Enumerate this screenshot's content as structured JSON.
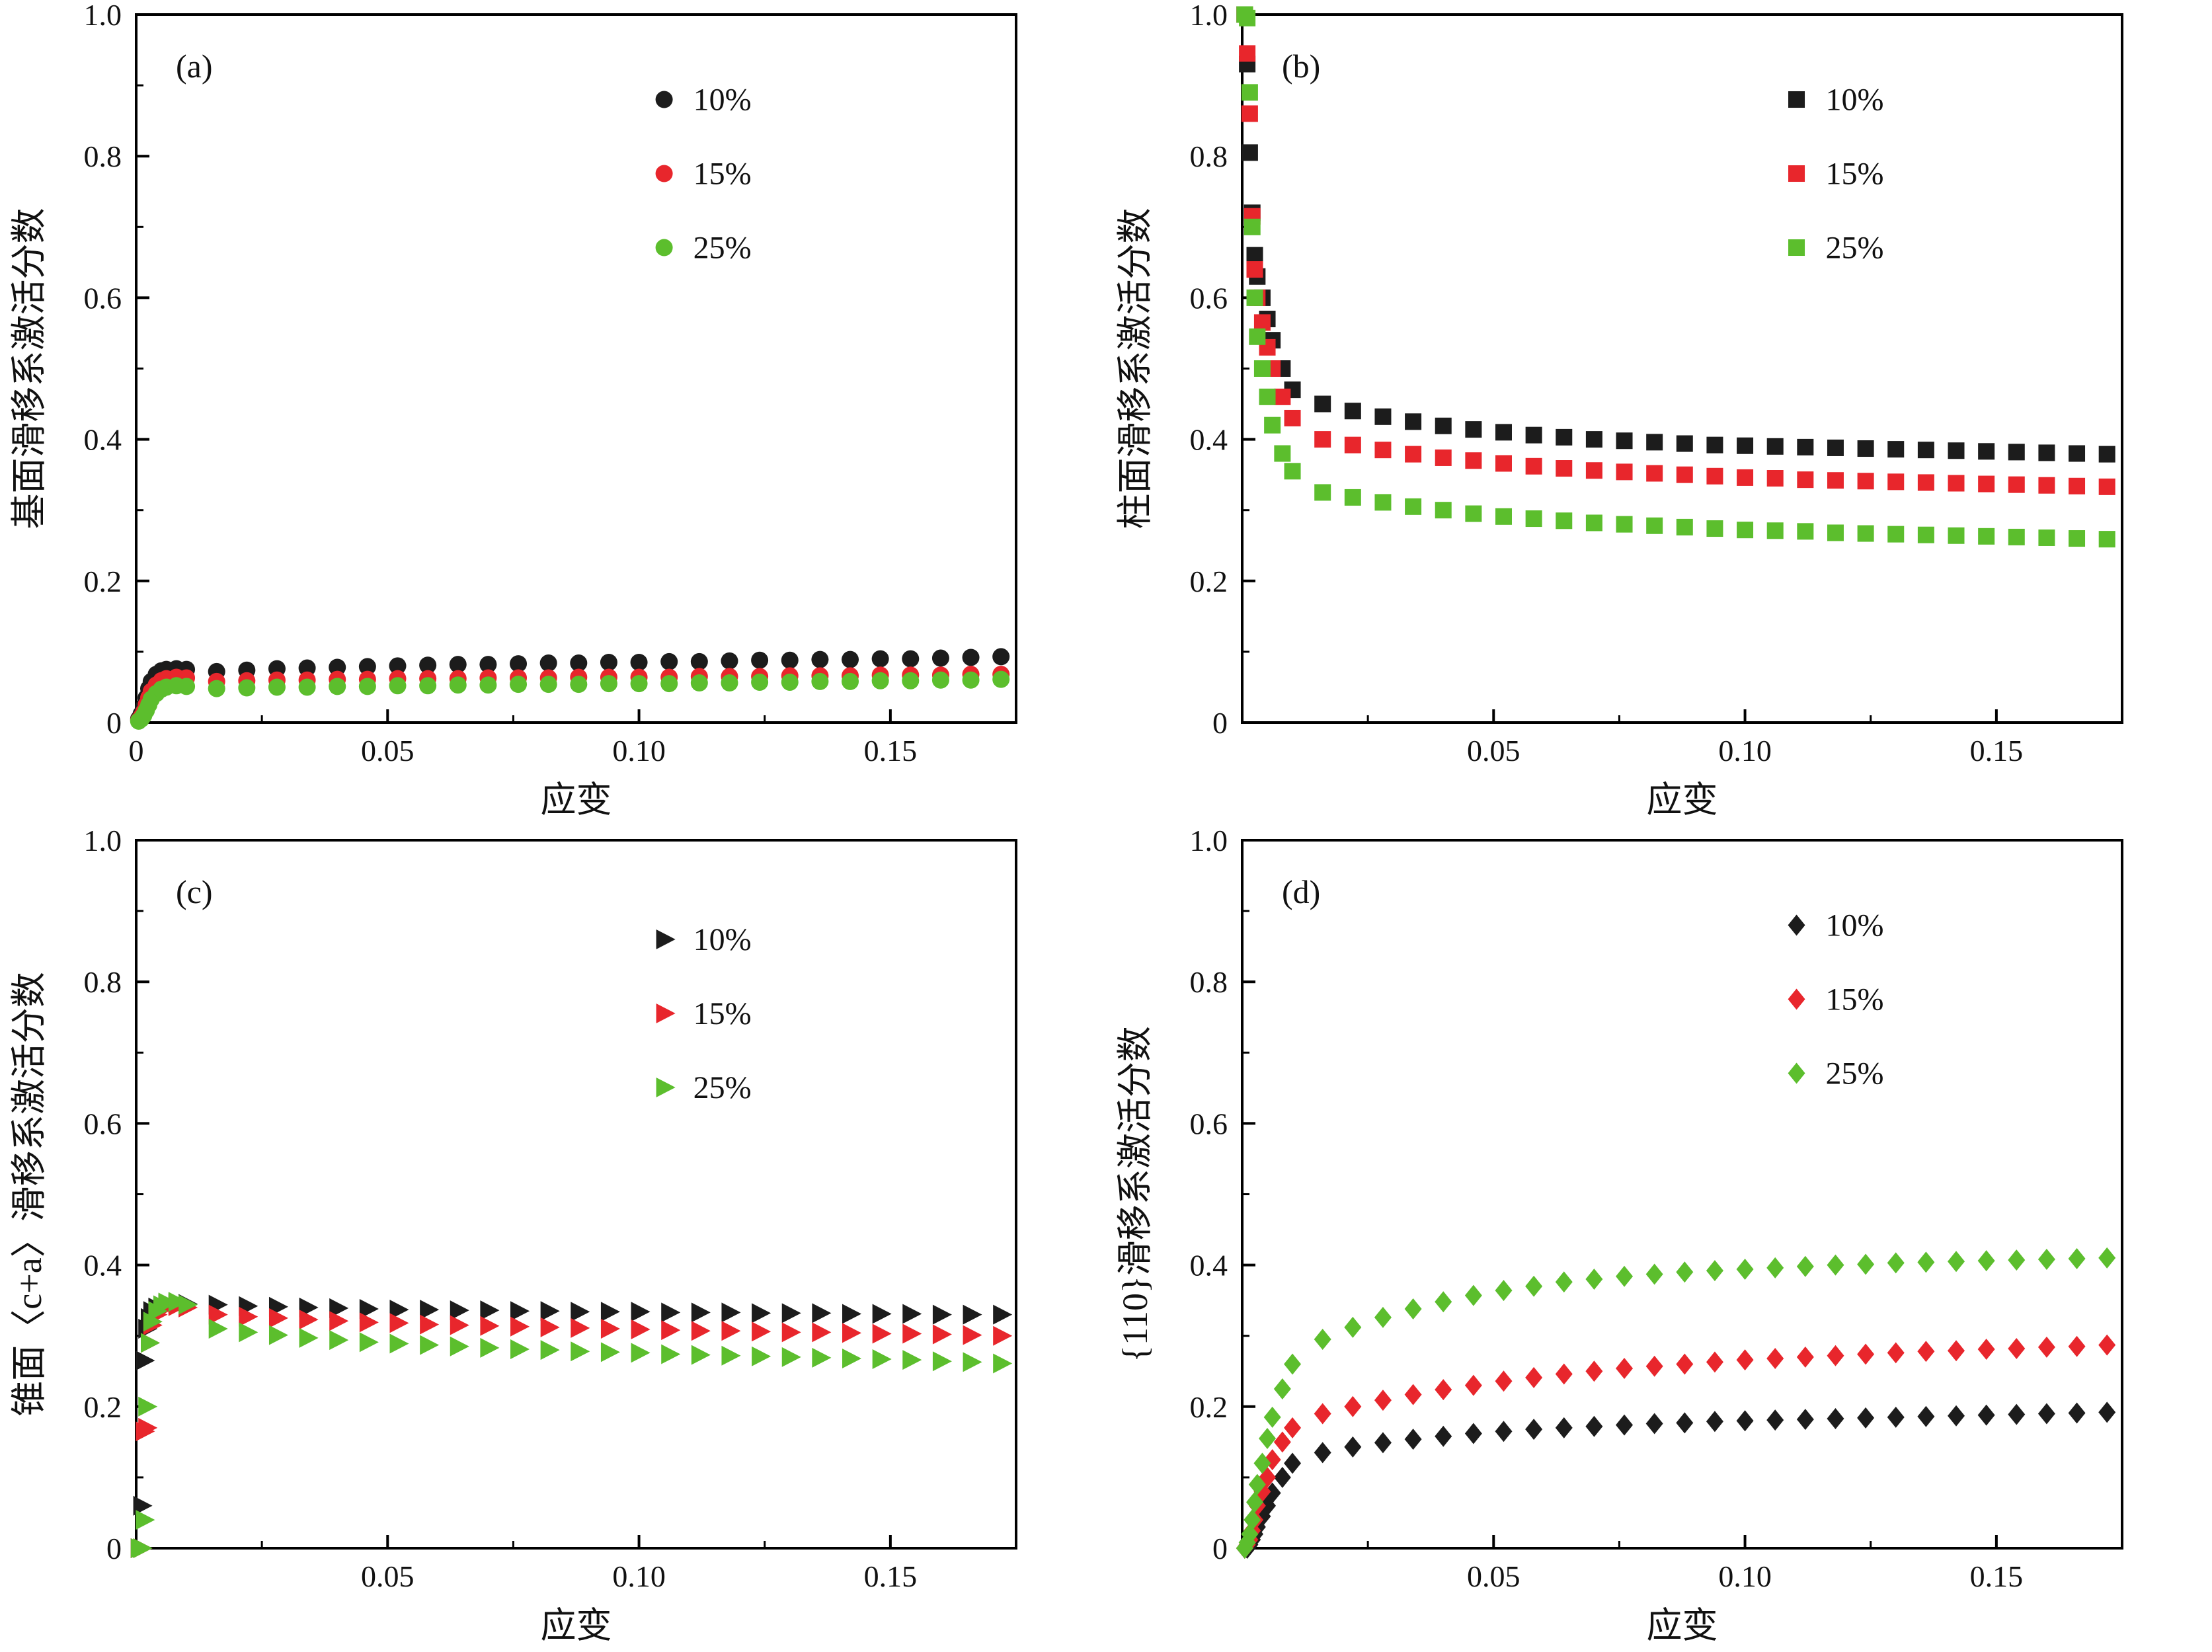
{
  "style": {
    "background": "#ffffff",
    "axis_color": "#000000",
    "text_color": "#111111",
    "series_colors": {
      "black": "#1c1c1c",
      "red": "#e8262c",
      "green": "#5cbe2d"
    }
  },
  "chart_data": [
    {
      "id": "a",
      "type": "scatter",
      "panel_label": "(a)",
      "marker": "circle",
      "xlabel": "应变",
      "ylabel": "基面滑移系激活分数",
      "xlim": [
        0,
        0.175
      ],
      "ylim": [
        0,
        1.0
      ],
      "grid": false,
      "x_ticks": {
        "values": [
          0,
          0.05,
          0.1,
          0.15
        ],
        "labels": [
          "0",
          "0.05",
          "0.10",
          "0.15"
        ]
      },
      "y_ticks": {
        "values": [
          0,
          0.2,
          0.4,
          0.6,
          0.8,
          1.0
        ],
        "labels": [
          "0",
          "0.2",
          "0.4",
          "0.6",
          "0.8",
          "1.0"
        ]
      },
      "x_minor": [
        0.025,
        0.075,
        0.125
      ],
      "y_minor": [
        0.1,
        0.3,
        0.5,
        0.7,
        0.9
      ],
      "legend": {
        "x": 0.6,
        "y": 0.12,
        "position": "upper-center-right"
      },
      "x": [
        0.0005,
        0.001,
        0.0015,
        0.002,
        0.0025,
        0.003,
        0.004,
        0.005,
        0.006,
        0.008,
        0.01,
        0.016,
        0.022,
        0.028,
        0.034,
        0.04,
        0.046,
        0.052,
        0.058,
        0.064,
        0.07,
        0.076,
        0.082,
        0.088,
        0.094,
        0.1,
        0.106,
        0.112,
        0.118,
        0.124,
        0.13,
        0.136,
        0.142,
        0.148,
        0.154,
        0.16,
        0.166,
        0.172
      ],
      "series": [
        {
          "name": "10%",
          "color": "#1c1c1c",
          "values": [
            0.005,
            0.012,
            0.022,
            0.035,
            0.048,
            0.058,
            0.068,
            0.073,
            0.075,
            0.076,
            0.075,
            0.072,
            0.074,
            0.076,
            0.077,
            0.078,
            0.079,
            0.08,
            0.081,
            0.082,
            0.082,
            0.083,
            0.084,
            0.084,
            0.085,
            0.085,
            0.086,
            0.086,
            0.087,
            0.088,
            0.088,
            0.089,
            0.089,
            0.09,
            0.09,
            0.091,
            0.092,
            0.093
          ]
        },
        {
          "name": "15%",
          "color": "#e8262c",
          "values": [
            0.003,
            0.008,
            0.015,
            0.025,
            0.035,
            0.044,
            0.053,
            0.059,
            0.062,
            0.064,
            0.063,
            0.058,
            0.059,
            0.06,
            0.06,
            0.061,
            0.061,
            0.062,
            0.062,
            0.062,
            0.063,
            0.063,
            0.063,
            0.064,
            0.064,
            0.064,
            0.064,
            0.065,
            0.065,
            0.065,
            0.066,
            0.066,
            0.066,
            0.067,
            0.067,
            0.067,
            0.068,
            0.068
          ]
        },
        {
          "name": "25%",
          "color": "#5cbe2d",
          "values": [
            0.002,
            0.005,
            0.01,
            0.017,
            0.025,
            0.033,
            0.041,
            0.047,
            0.05,
            0.052,
            0.051,
            0.048,
            0.049,
            0.05,
            0.05,
            0.051,
            0.051,
            0.052,
            0.052,
            0.053,
            0.053,
            0.054,
            0.054,
            0.054,
            0.055,
            0.055,
            0.055,
            0.056,
            0.056,
            0.057,
            0.057,
            0.058,
            0.058,
            0.059,
            0.059,
            0.06,
            0.06,
            0.061
          ]
        }
      ]
    },
    {
      "id": "b",
      "type": "scatter",
      "panel_label": "(b)",
      "marker": "square",
      "xlabel": "应变",
      "ylabel": "柱面滑移系激活分数",
      "xlim": [
        0,
        0.175
      ],
      "ylim": [
        0,
        1.0
      ],
      "grid": false,
      "x_ticks": {
        "values": [
          0.05,
          0.1,
          0.15
        ],
        "labels": [
          "0.05",
          "0.10",
          "0.15"
        ]
      },
      "y_ticks": {
        "values": [
          0,
          0.2,
          0.4,
          0.6,
          0.8,
          1.0
        ],
        "labels": [
          "0",
          "0.2",
          "0.4",
          "0.6",
          "0.8",
          "1.0"
        ]
      },
      "x_minor": [
        0.025,
        0.075,
        0.125
      ],
      "y_minor": [
        0.1,
        0.3,
        0.5,
        0.7,
        0.9
      ],
      "legend": {
        "x": 0.63,
        "y": 0.12,
        "position": "upper-right"
      },
      "x": [
        0.0005,
        0.001,
        0.0015,
        0.002,
        0.0025,
        0.003,
        0.004,
        0.005,
        0.006,
        0.008,
        0.01,
        0.016,
        0.022,
        0.028,
        0.034,
        0.04,
        0.046,
        0.052,
        0.058,
        0.064,
        0.07,
        0.076,
        0.082,
        0.088,
        0.094,
        0.1,
        0.106,
        0.112,
        0.118,
        0.124,
        0.13,
        0.136,
        0.142,
        0.148,
        0.154,
        0.16,
        0.166,
        0.172
      ],
      "series": [
        {
          "name": "10%",
          "color": "#1c1c1c",
          "values": [
            1.0,
            0.93,
            0.805,
            0.72,
            0.66,
            0.63,
            0.6,
            0.57,
            0.54,
            0.5,
            0.47,
            0.45,
            0.44,
            0.432,
            0.425,
            0.419,
            0.414,
            0.41,
            0.406,
            0.403,
            0.4,
            0.398,
            0.396,
            0.394,
            0.392,
            0.391,
            0.39,
            0.389,
            0.388,
            0.387,
            0.386,
            0.385,
            0.384,
            0.383,
            0.382,
            0.381,
            0.38,
            0.379
          ]
        },
        {
          "name": "15%",
          "color": "#e8262c",
          "values": [
            1.0,
            0.945,
            0.86,
            0.715,
            0.64,
            0.6,
            0.565,
            0.53,
            0.5,
            0.46,
            0.43,
            0.4,
            0.392,
            0.385,
            0.379,
            0.374,
            0.37,
            0.366,
            0.362,
            0.359,
            0.356,
            0.354,
            0.352,
            0.35,
            0.348,
            0.346,
            0.345,
            0.343,
            0.342,
            0.341,
            0.34,
            0.339,
            0.338,
            0.337,
            0.336,
            0.335,
            0.334,
            0.333
          ]
        },
        {
          "name": "25%",
          "color": "#5cbe2d",
          "values": [
            1.0,
            0.995,
            0.89,
            0.7,
            0.6,
            0.545,
            0.5,
            0.46,
            0.42,
            0.38,
            0.355,
            0.325,
            0.318,
            0.311,
            0.305,
            0.3,
            0.295,
            0.291,
            0.288,
            0.285,
            0.282,
            0.28,
            0.278,
            0.276,
            0.274,
            0.272,
            0.271,
            0.27,
            0.268,
            0.267,
            0.266,
            0.265,
            0.264,
            0.263,
            0.262,
            0.261,
            0.26,
            0.259
          ]
        }
      ]
    },
    {
      "id": "c",
      "type": "scatter",
      "panel_label": "(c)",
      "marker": "triangle-right",
      "xlabel": "应变",
      "ylabel": "锥面〈c+a〉滑移系激活分数",
      "xlim": [
        0,
        0.175
      ],
      "ylim": [
        0,
        1.0
      ],
      "grid": false,
      "x_ticks": {
        "values": [
          0.05,
          0.1,
          0.15
        ],
        "labels": [
          "0.05",
          "0.10",
          "0.15"
        ]
      },
      "y_ticks": {
        "values": [
          0,
          0.2,
          0.4,
          0.6,
          0.8,
          1.0
        ],
        "labels": [
          "0",
          "0.2",
          "0.4",
          "0.6",
          "0.8",
          "1.0"
        ]
      },
      "x_minor": [
        0.025,
        0.075,
        0.125
      ],
      "y_minor": [
        0.1,
        0.3,
        0.5,
        0.7,
        0.9
      ],
      "legend": {
        "x": 0.6,
        "y": 0.14,
        "position": "upper-center-right"
      },
      "x": [
        0.0005,
        0.001,
        0.0015,
        0.002,
        0.0025,
        0.003,
        0.004,
        0.005,
        0.006,
        0.008,
        0.01,
        0.016,
        0.022,
        0.028,
        0.034,
        0.04,
        0.046,
        0.052,
        0.058,
        0.064,
        0.07,
        0.076,
        0.082,
        0.088,
        0.094,
        0.1,
        0.106,
        0.112,
        0.118,
        0.124,
        0.13,
        0.136,
        0.142,
        0.148,
        0.154,
        0.16,
        0.166,
        0.172
      ],
      "series": [
        {
          "name": "10%",
          "color": "#1c1c1c",
          "values": [
            0.0,
            0.06,
            0.265,
            0.31,
            0.325,
            0.335,
            0.34,
            0.343,
            0.345,
            0.346,
            0.345,
            0.344,
            0.342,
            0.341,
            0.34,
            0.339,
            0.338,
            0.337,
            0.337,
            0.336,
            0.336,
            0.335,
            0.335,
            0.334,
            0.334,
            0.334,
            0.333,
            0.333,
            0.333,
            0.332,
            0.332,
            0.332,
            0.331,
            0.331,
            0.331,
            0.33,
            0.33,
            0.33
          ]
        },
        {
          "name": "15%",
          "color": "#e8262c",
          "values": [
            0.0,
            0.0,
            0.165,
            0.17,
            0.29,
            0.315,
            0.33,
            0.338,
            0.341,
            0.342,
            0.34,
            0.33,
            0.327,
            0.325,
            0.323,
            0.321,
            0.319,
            0.318,
            0.316,
            0.315,
            0.314,
            0.313,
            0.312,
            0.311,
            0.31,
            0.309,
            0.308,
            0.307,
            0.307,
            0.306,
            0.305,
            0.305,
            0.304,
            0.303,
            0.303,
            0.302,
            0.301,
            0.3
          ]
        },
        {
          "name": "25%",
          "color": "#5cbe2d",
          "values": [
            0.0,
            0.0,
            0.04,
            0.2,
            0.29,
            0.32,
            0.335,
            0.343,
            0.347,
            0.348,
            0.344,
            0.31,
            0.305,
            0.301,
            0.297,
            0.294,
            0.291,
            0.289,
            0.287,
            0.285,
            0.283,
            0.281,
            0.28,
            0.278,
            0.277,
            0.276,
            0.274,
            0.273,
            0.272,
            0.271,
            0.27,
            0.269,
            0.268,
            0.267,
            0.266,
            0.264,
            0.263,
            0.261
          ]
        }
      ]
    },
    {
      "id": "d",
      "type": "scatter",
      "panel_label": "(d)",
      "marker": "diamond",
      "xlabel": "应变",
      "ylabel": "{110}滑移系激活分数",
      "xlim": [
        0,
        0.175
      ],
      "ylim": [
        0,
        1.0
      ],
      "grid": false,
      "x_ticks": {
        "values": [
          0.05,
          0.1,
          0.15
        ],
        "labels": [
          "0.05",
          "0.10",
          "0.15"
        ]
      },
      "y_ticks": {
        "values": [
          0,
          0.2,
          0.4,
          0.6,
          0.8,
          1.0
        ],
        "labels": [
          "0",
          "0.2",
          "0.4",
          "0.6",
          "0.8",
          "1.0"
        ]
      },
      "x_minor": [
        0.025,
        0.075,
        0.125
      ],
      "y_minor": [
        0.1,
        0.3,
        0.5,
        0.7,
        0.9
      ],
      "legend": {
        "x": 0.63,
        "y": 0.12,
        "position": "upper-right"
      },
      "x": [
        0.0005,
        0.001,
        0.0015,
        0.002,
        0.0025,
        0.003,
        0.004,
        0.005,
        0.006,
        0.008,
        0.01,
        0.016,
        0.022,
        0.028,
        0.034,
        0.04,
        0.046,
        0.052,
        0.058,
        0.064,
        0.07,
        0.076,
        0.082,
        0.088,
        0.094,
        0.1,
        0.106,
        0.112,
        0.118,
        0.124,
        0.13,
        0.136,
        0.142,
        0.148,
        0.154,
        0.16,
        0.166,
        0.172
      ],
      "series": [
        {
          "name": "10%",
          "color": "#1c1c1c",
          "values": [
            0.0,
            0.0,
            0.005,
            0.012,
            0.02,
            0.03,
            0.045,
            0.06,
            0.078,
            0.1,
            0.12,
            0.135,
            0.143,
            0.149,
            0.154,
            0.158,
            0.162,
            0.165,
            0.168,
            0.17,
            0.172,
            0.174,
            0.176,
            0.177,
            0.179,
            0.18,
            0.181,
            0.182,
            0.183,
            0.184,
            0.185,
            0.186,
            0.187,
            0.188,
            0.189,
            0.19,
            0.191,
            0.192
          ]
        },
        {
          "name": "15%",
          "color": "#e8262c",
          "values": [
            0.0,
            0.005,
            0.012,
            0.025,
            0.04,
            0.06,
            0.08,
            0.1,
            0.125,
            0.15,
            0.17,
            0.19,
            0.2,
            0.209,
            0.217,
            0.224,
            0.23,
            0.236,
            0.241,
            0.246,
            0.25,
            0.254,
            0.257,
            0.26,
            0.263,
            0.266,
            0.268,
            0.27,
            0.272,
            0.274,
            0.276,
            0.278,
            0.279,
            0.281,
            0.282,
            0.284,
            0.285,
            0.287
          ]
        },
        {
          "name": "25%",
          "color": "#5cbe2d",
          "values": [
            0.0,
            0.008,
            0.02,
            0.04,
            0.065,
            0.09,
            0.12,
            0.155,
            0.185,
            0.225,
            0.26,
            0.295,
            0.312,
            0.326,
            0.338,
            0.348,
            0.357,
            0.364,
            0.37,
            0.376,
            0.38,
            0.384,
            0.387,
            0.39,
            0.392,
            0.394,
            0.396,
            0.398,
            0.4,
            0.401,
            0.403,
            0.404,
            0.405,
            0.406,
            0.407,
            0.408,
            0.409,
            0.41
          ]
        }
      ]
    }
  ]
}
